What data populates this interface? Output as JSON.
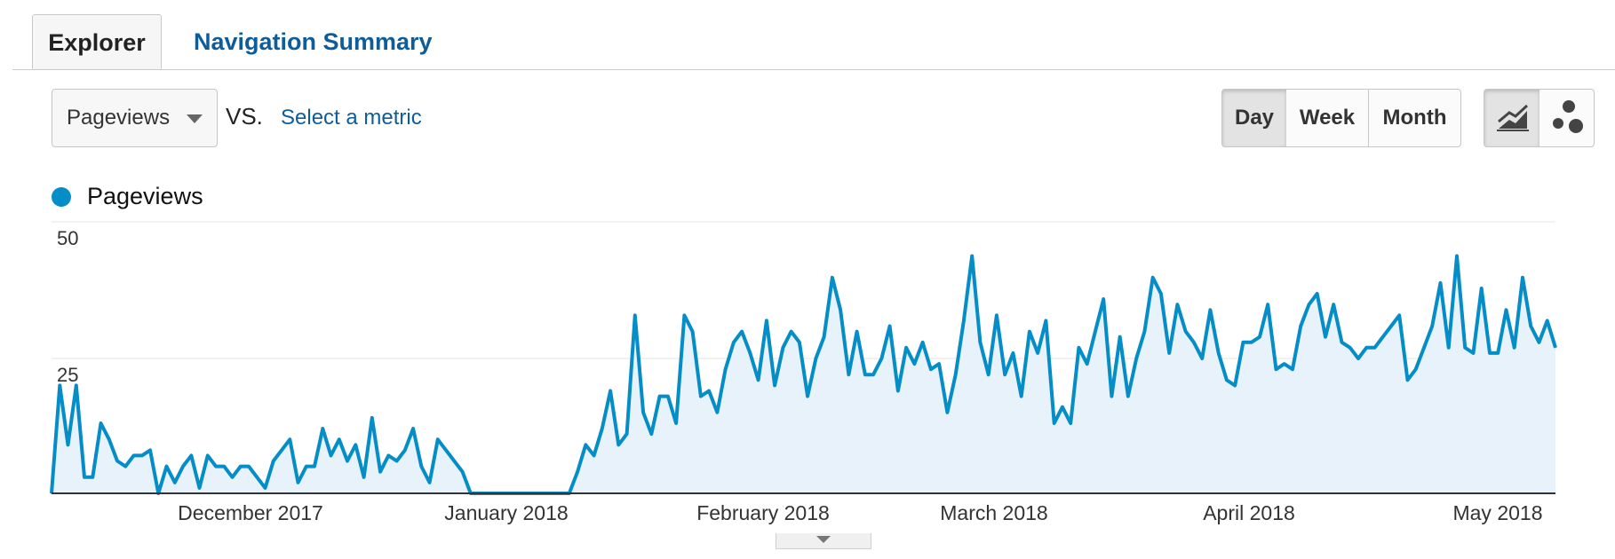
{
  "tabs": {
    "explorer": "Explorer",
    "navigation_summary": "Navigation Summary"
  },
  "controls": {
    "primary_metric": "Pageviews",
    "vs_label": "VS.",
    "select_metric": "Select a metric",
    "granularity": [
      "Day",
      "Week",
      "Month"
    ],
    "selected_granularity": "Day",
    "chart_modes": [
      "line-chart-icon",
      "motion-chart-icon"
    ],
    "selected_chart_mode": "line-chart-icon"
  },
  "legend": {
    "label": "Pageviews",
    "color": "#058dc7"
  },
  "chart_data": {
    "type": "area",
    "series": [
      {
        "name": "Pageviews",
        "color": "#058dc7",
        "values": [
          0,
          20,
          9,
          20,
          3,
          3,
          13,
          10,
          6,
          5,
          7,
          7,
          8,
          0,
          5,
          2,
          5,
          7,
          1,
          7,
          5,
          5,
          3,
          5,
          5,
          3,
          1,
          6,
          8,
          10,
          2,
          5,
          5,
          12,
          7,
          10,
          6,
          9,
          3,
          14,
          4,
          7,
          6,
          8,
          12,
          5,
          2,
          10,
          8,
          6,
          4,
          0,
          0,
          0,
          0,
          0,
          0,
          0,
          0,
          0,
          0,
          0,
          0,
          0,
          4,
          9,
          7,
          12,
          19,
          9,
          11,
          33,
          15,
          11,
          18,
          18,
          13,
          33,
          30,
          18,
          19,
          15,
          23,
          28,
          30,
          26,
          21,
          32,
          20,
          27,
          30,
          28,
          18,
          25,
          29,
          40,
          34,
          22,
          30,
          22,
          22,
          25,
          31,
          19,
          27,
          24,
          28,
          23,
          24,
          15,
          22,
          32,
          44,
          28,
          22,
          33,
          22,
          26,
          18,
          30,
          26,
          32,
          13,
          16,
          13,
          27,
          24,
          30,
          36,
          18,
          29,
          18,
          25,
          30,
          40,
          37,
          26,
          35,
          30,
          28,
          25,
          34,
          26,
          21,
          20,
          28,
          28,
          29,
          35,
          23,
          24,
          23,
          31,
          35,
          37,
          29,
          35,
          28,
          27,
          25,
          27,
          27,
          29,
          31,
          33,
          21,
          23,
          27,
          31,
          39,
          27,
          44,
          27,
          26,
          38,
          26,
          26,
          34,
          27,
          40,
          31,
          28,
          32,
          27
        ]
      }
    ],
    "x_labels": [
      "December 2017",
      "January 2018",
      "February 2018",
      "March 2018",
      "April 2018",
      "May 2018"
    ],
    "y_ticks": [
      "50",
      "25"
    ],
    "ylim": [
      0,
      50
    ],
    "grid": true,
    "fill_color": "#e7f2fa"
  }
}
